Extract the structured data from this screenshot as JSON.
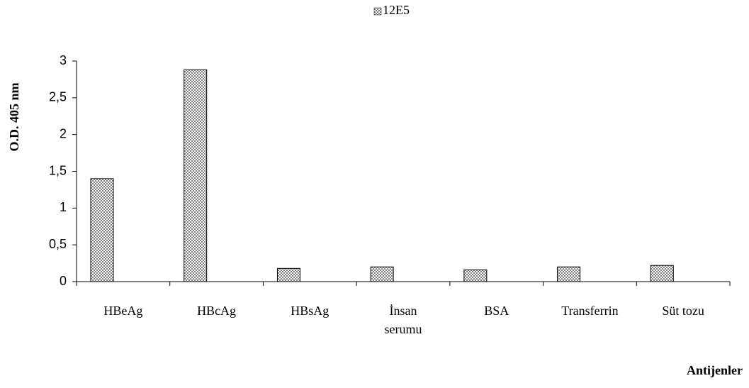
{
  "chart_data": {
    "type": "bar",
    "series": [
      {
        "name": "12E5",
        "color": "#7f7f7f",
        "values": [
          1.4,
          2.88,
          0.18,
          0.2,
          0.16,
          0.2,
          0.22
        ]
      }
    ],
    "categories": [
      "HBeAg",
      "HBcAg",
      "HBsAg",
      "İnsan serumu",
      "BSA",
      "Transferrin",
      "Süt tozu"
    ],
    "ylabel": "O.D. 405 nm",
    "xlabel": "Antijenler",
    "ylim": [
      0,
      3
    ],
    "yticks": [
      0,
      {
        "value": 0.5,
        "label": "0,5"
      },
      1,
      {
        "value": 1.5,
        "label": "1,5"
      },
      2,
      {
        "value": 2.5,
        "label": "2,5"
      },
      3
    ],
    "grid": false,
    "legend": "top"
  }
}
